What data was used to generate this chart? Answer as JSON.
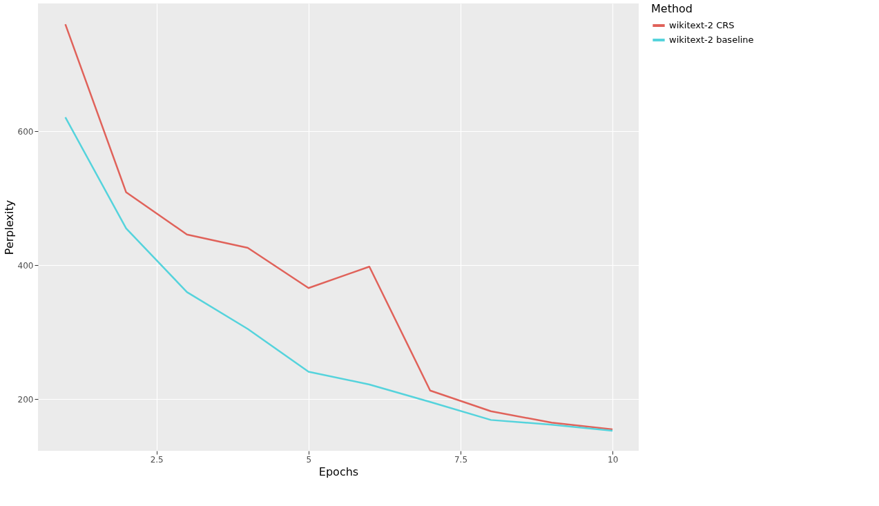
{
  "chart_data": {
    "type": "line",
    "xlabel": "Epochs",
    "ylabel": "Perplexity",
    "legend_title": "Method",
    "x": [
      1,
      2,
      3,
      4,
      5,
      6,
      7,
      8,
      9,
      10
    ],
    "series": [
      {
        "name": "wikitext-2 CRS",
        "color": "#e0625a",
        "values": [
          760,
          509,
          446,
          426,
          366,
          398,
          213,
          182,
          165,
          155
        ]
      },
      {
        "name": "wikitext-2 baseline",
        "color": "#55d3dc",
        "values": [
          621,
          455,
          360,
          305,
          241,
          222,
          196,
          169,
          162,
          153
        ]
      }
    ],
    "xlim": [
      0.55,
      10.43
    ],
    "ylim": [
      123,
      791
    ],
    "xticks": [
      {
        "value": 2.5,
        "label": "2.5"
      },
      5,
      {
        "value": 7.5,
        "label": "7.5"
      },
      10
    ],
    "yticks": [
      200,
      400,
      600
    ],
    "grid": true,
    "legend": "right",
    "marker": "none",
    "line_style": "solid"
  }
}
